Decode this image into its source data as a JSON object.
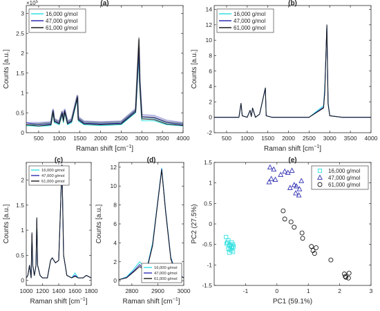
{
  "chart_data": [
    {
      "panel_label": "(a)",
      "type": "line",
      "xlabel": "Raman shift [cm",
      "xlabel_sup": "−1",
      "xlabel_tail": "]",
      "ylabel": "Counts [a.u.]",
      "exponent": "×10",
      "exponent_sup": "5",
      "xlim": [
        200,
        4000
      ],
      "ylim": [
        0,
        3.2
      ],
      "xticks": [
        500,
        1000,
        1500,
        2000,
        2500,
        3000,
        3500,
        4000
      ],
      "yticks": [
        0,
        0.5,
        1,
        1.5,
        2,
        2.5,
        3
      ],
      "ytick_labels": [
        "0",
        "0.5",
        "1",
        "1.5",
        "2",
        "2.5",
        "3"
      ],
      "legend_position": "top-left",
      "series": [
        {
          "name": "16,000 g/mol",
          "color": "#33e0e0",
          "baseline": 0.13,
          "x": [
            200,
            500,
            800,
            850,
            880,
            1000,
            1070,
            1100,
            1130,
            1200,
            1300,
            1440,
            1460,
            1600,
            2000,
            2500,
            2850,
            2930,
            2950,
            3000,
            3300,
            3600,
            4000
          ],
          "y": [
            0.18,
            0.16,
            0.18,
            0.5,
            0.25,
            0.2,
            0.45,
            0.25,
            0.5,
            0.2,
            0.25,
            0.85,
            0.3,
            0.2,
            0.18,
            0.2,
            0.5,
            1.95,
            1.2,
            0.3,
            0.3,
            0.2,
            0.17
          ]
        },
        {
          "name": "47,000 g/mol",
          "color": "#2d2db4",
          "baseline": 0.15,
          "x": [
            200,
            500,
            800,
            850,
            880,
            1000,
            1070,
            1100,
            1130,
            1200,
            1300,
            1440,
            1460,
            1600,
            2000,
            2500,
            2850,
            2930,
            2950,
            3000,
            3300,
            3600,
            4000
          ],
          "y": [
            0.25,
            0.2,
            0.22,
            0.55,
            0.3,
            0.24,
            0.5,
            0.3,
            0.55,
            0.24,
            0.3,
            0.9,
            0.35,
            0.24,
            0.22,
            0.24,
            0.55,
            2.1,
            1.3,
            0.4,
            0.38,
            0.26,
            0.2
          ]
        },
        {
          "name": "61,000 g/mol",
          "color": "#1a1a1a",
          "baseline": 0.12,
          "x": [
            200,
            500,
            800,
            850,
            880,
            1000,
            1070,
            1100,
            1130,
            1200,
            1300,
            1440,
            1460,
            1600,
            2000,
            2500,
            2850,
            2930,
            2950,
            3000,
            3300,
            3600,
            4000
          ],
          "y": [
            0.2,
            0.17,
            0.2,
            0.52,
            0.28,
            0.22,
            0.48,
            0.28,
            0.52,
            0.22,
            0.28,
            0.88,
            0.32,
            0.22,
            0.2,
            0.22,
            0.52,
            2.35,
            1.25,
            0.35,
            0.33,
            0.22,
            0.18
          ]
        }
      ]
    },
    {
      "panel_label": "(b)",
      "type": "line",
      "xlabel": "Raman shift [cm",
      "xlabel_sup": "−1",
      "xlabel_tail": "]",
      "ylabel": "Counts [a.u.]",
      "xlim": [
        200,
        4000
      ],
      "ylim": [
        -2,
        14.5
      ],
      "xticks": [
        500,
        1000,
        1500,
        2000,
        2500,
        3000,
        3500,
        4000
      ],
      "yticks": [
        -2,
        0,
        2,
        4,
        6,
        8,
        10,
        12,
        14
      ],
      "ytick_labels": [
        "-2",
        "0",
        "2",
        "4",
        "6",
        "8",
        "10",
        "12",
        "14"
      ],
      "legend_position": "top-left",
      "series": [
        {
          "name": "16,000 g/mol",
          "color": "#33e0e0",
          "x": [
            200,
            500,
            800,
            850,
            880,
            1000,
            1070,
            1100,
            1130,
            1200,
            1300,
            1440,
            1460,
            1600,
            2000,
            2500,
            2850,
            2880,
            2930,
            2960,
            3000,
            3300,
            3600,
            4000
          ],
          "y": [
            0,
            0,
            0,
            1.8,
            0.2,
            0,
            0.9,
            0.1,
            1.2,
            0,
            0.4,
            3.8,
            0.2,
            0,
            0,
            0,
            1.5,
            4.0,
            11.8,
            2.0,
            0.2,
            0,
            0,
            0
          ]
        },
        {
          "name": "47,000 g/mol",
          "color": "#2d2db4",
          "x": [
            200,
            500,
            800,
            850,
            880,
            1000,
            1070,
            1100,
            1130,
            1200,
            1300,
            1440,
            1460,
            1600,
            2000,
            2500,
            2850,
            2880,
            2930,
            2960,
            3000,
            3300,
            3600,
            4000
          ],
          "y": [
            0,
            0,
            0,
            1.8,
            0.2,
            0,
            0.9,
            0.1,
            1.2,
            0,
            0.4,
            3.8,
            0.2,
            0,
            0,
            0,
            1.3,
            3.5,
            11.9,
            1.8,
            0.2,
            0,
            0,
            0
          ]
        },
        {
          "name": "61,000 g/mol",
          "color": "#1a1a1a",
          "x": [
            200,
            500,
            800,
            850,
            880,
            1000,
            1070,
            1100,
            1130,
            1200,
            1300,
            1440,
            1460,
            1600,
            2000,
            2500,
            2850,
            2880,
            2930,
            2960,
            3000,
            3300,
            3600,
            4000
          ],
          "y": [
            0,
            0,
            0,
            1.8,
            0.2,
            0,
            0.9,
            0.1,
            1.2,
            0,
            0.4,
            3.8,
            0.2,
            0,
            0,
            0,
            1.2,
            3.2,
            12.0,
            1.7,
            0.2,
            0,
            0,
            0
          ]
        }
      ]
    },
    {
      "panel_label": "(c)",
      "type": "line",
      "xlabel": "Raman shift [cm",
      "xlabel_sup": "−1",
      "xlabel_tail": "]",
      "ylabel": "Counts [a.u.]",
      "xlim": [
        1000,
        1800
      ],
      "ylim": [
        -0.1,
        2.35
      ],
      "xticks": [
        1000,
        1200,
        1400,
        1600,
        1800
      ],
      "yticks": [
        0,
        0.5,
        1,
        1.5,
        2
      ],
      "ytick_labels": [
        "0",
        "0.5",
        "1",
        "1.5",
        "2"
      ],
      "legend_position": "top-left",
      "series": [
        {
          "name": "16,000 g/mol",
          "color": "#33e0e0",
          "x": [
            1000,
            1020,
            1040,
            1060,
            1070,
            1080,
            1100,
            1120,
            1130,
            1140,
            1170,
            1200,
            1260,
            1300,
            1320,
            1360,
            1400,
            1440,
            1460,
            1500,
            1560,
            1600,
            1640,
            1700,
            1740,
            1800
          ],
          "y": [
            0.05,
            0.1,
            0.3,
            0.05,
            0.9,
            0.3,
            0.1,
            0.3,
            1.2,
            0.3,
            0.1,
            0.05,
            0.05,
            0.4,
            0.45,
            0.35,
            0.4,
            2.3,
            0.5,
            0.1,
            0.05,
            0.15,
            0.05,
            0.05,
            0.1,
            0.05
          ]
        },
        {
          "name": "47,000 g/mol",
          "color": "#2d2db4",
          "x": [
            1000,
            1020,
            1040,
            1060,
            1070,
            1080,
            1100,
            1120,
            1130,
            1140,
            1170,
            1200,
            1260,
            1300,
            1320,
            1360,
            1400,
            1440,
            1460,
            1500,
            1560,
            1600,
            1640,
            1700,
            1740,
            1800
          ],
          "y": [
            0.05,
            0.1,
            0.3,
            0.05,
            0.92,
            0.3,
            0.1,
            0.3,
            1.22,
            0.3,
            0.1,
            0.05,
            0.05,
            0.4,
            0.45,
            0.35,
            0.4,
            2.3,
            0.5,
            0.1,
            0.05,
            0.1,
            0.05,
            0.05,
            0.1,
            0.05
          ]
        },
        {
          "name": "61,000 g/mol",
          "color": "#1a1a1a",
          "x": [
            1000,
            1020,
            1040,
            1060,
            1070,
            1080,
            1100,
            1120,
            1130,
            1140,
            1170,
            1200,
            1260,
            1300,
            1320,
            1360,
            1400,
            1440,
            1460,
            1500,
            1560,
            1600,
            1640,
            1700,
            1740,
            1800
          ],
          "y": [
            0.05,
            0.1,
            0.3,
            0.05,
            0.95,
            0.3,
            0.1,
            0.3,
            1.25,
            0.3,
            0.1,
            0.05,
            0.05,
            0.4,
            0.45,
            0.35,
            0.4,
            2.3,
            0.5,
            0.1,
            0.05,
            0.08,
            0.05,
            0.05,
            0.1,
            0.05
          ]
        }
      ]
    },
    {
      "panel_label": "(d)",
      "type": "line",
      "xlabel": "Raman shift [cm",
      "xlabel_sup": "−1",
      "xlabel_tail": "]",
      "ylabel": "Counts [a.u.]",
      "xlim": [
        2750,
        3000
      ],
      "ylim": [
        -0.5,
        12.5
      ],
      "xticks": [
        2800,
        2900,
        3000
      ],
      "yticks": [
        0,
        2,
        4,
        6,
        8,
        10,
        12
      ],
      "ytick_labels": [
        "0",
        "2",
        "4",
        "6",
        "8",
        "10",
        "12"
      ],
      "legend_position": "bottom-right",
      "series": [
        {
          "name": "16,000 g/mol",
          "color": "#33e0e0",
          "x": [
            2750,
            2780,
            2810,
            2830,
            2845,
            2860,
            2880,
            2900,
            2915,
            2930,
            2950,
            2970,
            3000
          ],
          "y": [
            0.1,
            0.4,
            1.3,
            2.0,
            1.5,
            1.6,
            4.0,
            8.5,
            11.9,
            7.5,
            2.5,
            0.8,
            0.3
          ]
        },
        {
          "name": "47,000 g/mol",
          "color": "#2d2db4",
          "x": [
            2750,
            2780,
            2810,
            2830,
            2845,
            2860,
            2880,
            2900,
            2915,
            2930,
            2950,
            2970,
            3000
          ],
          "y": [
            0.1,
            0.35,
            1.1,
            1.7,
            1.3,
            1.5,
            3.8,
            8.4,
            11.8,
            7.4,
            2.4,
            0.8,
            0.3
          ]
        },
        {
          "name": "61,000 g/mol",
          "color": "#1a1a1a",
          "x": [
            2750,
            2780,
            2810,
            2830,
            2845,
            2860,
            2880,
            2900,
            2915,
            2930,
            2950,
            2970,
            3000
          ],
          "y": [
            0.1,
            0.3,
            1.0,
            1.5,
            1.2,
            1.4,
            3.7,
            8.3,
            11.7,
            7.3,
            2.3,
            0.7,
            0.3
          ]
        }
      ]
    },
    {
      "panel_label": "(e)",
      "type": "scatter",
      "xlabel": "PC1 (59.1%)",
      "ylabel": "PC2 (27.5%)",
      "xlim": [
        -2,
        3
      ],
      "ylim": [
        -1.5,
        1.5
      ],
      "xticks": [
        -1,
        0,
        1,
        2,
        3
      ],
      "yticks": [
        -1.5,
        -1,
        -0.5,
        0,
        0.5,
        1,
        1.5
      ],
      "ytick_labels": [
        "-1.5",
        "-1",
        "-0.5",
        "0",
        "0.5",
        "1",
        "1.5"
      ],
      "legend_position": "top-right",
      "series": [
        {
          "name": "16,000 g/mol",
          "marker": "square",
          "color": "#33e0e0",
          "x": [
            -1.62,
            -1.55,
            -1.6,
            -1.52,
            -1.48,
            -1.45,
            -1.4,
            -1.42,
            -1.55,
            -1.5,
            -1.46,
            -1.38,
            -1.4,
            -1.58,
            -1.52,
            -1.44
          ],
          "y": [
            -0.32,
            -0.4,
            -0.48,
            -0.52,
            -0.5,
            -0.55,
            -0.5,
            -0.58,
            -0.6,
            -0.62,
            -0.65,
            -0.55,
            -0.68,
            -0.45,
            -0.7,
            -0.45
          ]
        },
        {
          "name": "47,000 g/mol",
          "marker": "triangle",
          "color": "#2d2db4",
          "x": [
            -0.22,
            -0.1,
            -0.18,
            0.12,
            0.25,
            0.35,
            0.48,
            0.55,
            0.62,
            0.72,
            0.78,
            -0.25,
            -0.05,
            0.42,
            0.6,
            0.7
          ],
          "y": [
            1.38,
            1.33,
            1.1,
            1.2,
            1.28,
            1.25,
            1.3,
            0.95,
            0.92,
            0.85,
            1.05,
            1.02,
            1.08,
            0.88,
            0.75,
            0.7
          ]
        },
        {
          "name": "61,000 g/mol",
          "marker": "circle",
          "color": "#1a1a1a",
          "x": [
            0.2,
            0.25,
            0.45,
            0.55,
            0.8,
            0.82,
            1.1,
            1.15,
            1.2,
            1.25,
            1.72,
            2.15,
            2.2,
            2.3,
            2.28,
            2.18
          ],
          "y": [
            0.32,
            0.12,
            0.05,
            -0.08,
            -0.22,
            -0.35,
            -0.55,
            -0.65,
            -0.72,
            -0.58,
            -0.88,
            -1.22,
            -1.3,
            -1.2,
            -1.32,
            -1.28
          ]
        }
      ]
    }
  ]
}
